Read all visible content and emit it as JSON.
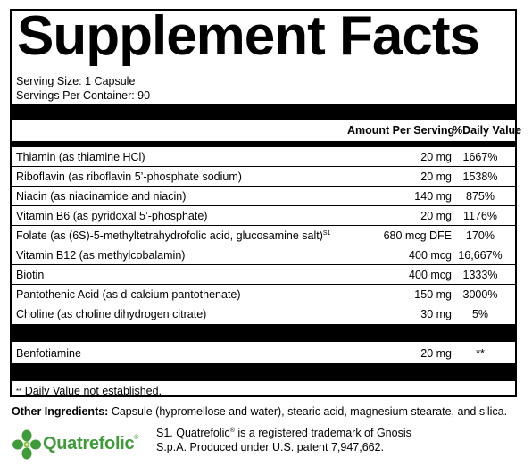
{
  "title": "Supplement Facts",
  "serving_size": "Serving Size: 1 Capsule",
  "servings_per_container": "Servings Per Container: 90",
  "columns": {
    "amount": "Amount Per Serving",
    "daily_value": "%Daily Value"
  },
  "nutrients": [
    {
      "name": "Thiamin (as thiamine HCl)",
      "sup": "",
      "amount": "20 mg",
      "dv": "1667%"
    },
    {
      "name": "Riboflavin (as riboflavin 5’-phosphate sodium)",
      "sup": "",
      "amount": "20 mg",
      "dv": "1538%"
    },
    {
      "name": "Niacin (as niacinamide and niacin)",
      "sup": "",
      "amount": "140 mg",
      "dv": "875%"
    },
    {
      "name": "Vitamin B6 (as pyridoxal 5’-phosphate)",
      "sup": "",
      "amount": "20 mg",
      "dv": "1176%"
    },
    {
      "name": "Folate (as (6S)-5-methyltetrahydrofolic acid, glucosamine salt)",
      "sup": "S1",
      "amount": "680 mcg DFE",
      "dv": "170%"
    },
    {
      "name": "Vitamin B12 (as methylcobalamin)",
      "sup": "",
      "amount": "400 mcg",
      "dv": "16,667%"
    },
    {
      "name": "Biotin",
      "sup": "",
      "amount": "400 mcg",
      "dv": "1333%"
    },
    {
      "name": "Pantothenic Acid (as d-calcium pantothenate)",
      "sup": "",
      "amount": "150 mg",
      "dv": "3000%"
    },
    {
      "name": "Choline (as choline dihydrogen citrate)",
      "sup": "",
      "amount": "30 mg",
      "dv": "5%"
    }
  ],
  "other_nutrients": [
    {
      "name": "Benfotiamine",
      "amount": "20 mg",
      "dv": "**"
    }
  ],
  "footnote": {
    "stars": "**",
    "text": " Daily Value not established."
  },
  "other_ingredients": {
    "label": "Other Ingredients:",
    "text": " Capsule (hypromellose and water), stearic acid, magnesium stearate, and silica."
  },
  "logo": {
    "name": "Quatrefolic",
    "mark": "®",
    "color": "#3f9a3a",
    "icon": "clover-icon"
  },
  "trademark": {
    "line1_prefix": "S1. Quatrefolic",
    "line1_mark": "®",
    "line1_suffix": " is a registered trademark of Gnosis",
    "line2": "S.p.A. Produced under U.S. patent 7,947,662."
  }
}
